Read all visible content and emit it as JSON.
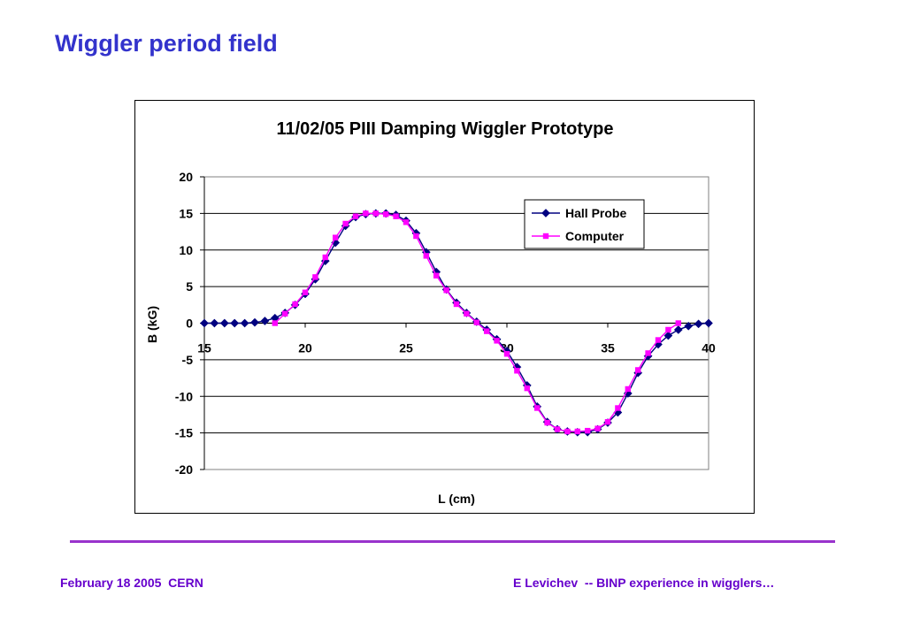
{
  "slide": {
    "title": "Wiggler period field",
    "footer_left": "February 18 2005  CERN",
    "footer_right": "E Levichev  -- BINP experience in wigglers…"
  },
  "colors": {
    "title": "#3333cc",
    "footer": "#6600cc",
    "divider": "#9933cc",
    "hall_probe": "#000080",
    "computer": "#ff00ff"
  },
  "chart_data": {
    "type": "line",
    "title": "11/02/05 PIII Damping Wiggler Prototype",
    "xlabel": "L (cm)",
    "ylabel": "B (kG)",
    "xlim": [
      15,
      40
    ],
    "ylim": [
      -20,
      20
    ],
    "x_ticks": [
      "15",
      "20",
      "25",
      "30",
      "35",
      "40"
    ],
    "y_ticks": [
      "20",
      "15",
      "10",
      "5",
      "0",
      "-5",
      "-10",
      "-15",
      "-20"
    ],
    "grid": "horizontal",
    "legend_position": "top-right",
    "series": [
      {
        "name": "Hall Probe",
        "marker": "diamond",
        "color": "#000080",
        "x": [
          15,
          15.5,
          16,
          16.5,
          17,
          17.5,
          18,
          18.5,
          19,
          19.5,
          20,
          20.5,
          21,
          21.5,
          22,
          22.5,
          23,
          23.5,
          24,
          24.5,
          25,
          25.5,
          26,
          26.5,
          27,
          27.5,
          28,
          28.5,
          29,
          29.5,
          30,
          30.5,
          31,
          31.5,
          32,
          32.5,
          33,
          33.5,
          34,
          34.5,
          35,
          35.5,
          36,
          36.5,
          37,
          37.5,
          38,
          38.5,
          39,
          39.5,
          40
        ],
        "values": [
          0,
          0,
          0,
          0,
          0,
          0.1,
          0.3,
          0.7,
          1.4,
          2.5,
          4.0,
          6.0,
          8.5,
          11.0,
          13.3,
          14.5,
          14.9,
          15.0,
          15.0,
          14.8,
          14.0,
          12.3,
          9.7,
          7.0,
          4.6,
          2.8,
          1.4,
          0.2,
          -0.9,
          -2.2,
          -3.8,
          -6.0,
          -8.5,
          -11.4,
          -13.5,
          -14.5,
          -14.8,
          -14.9,
          -14.9,
          -14.5,
          -13.6,
          -12.2,
          -9.6,
          -6.8,
          -4.5,
          -2.9,
          -1.7,
          -0.9,
          -0.4,
          -0.1,
          0
        ]
      },
      {
        "name": "Computer",
        "marker": "square",
        "color": "#ff00ff",
        "x": [
          18.5,
          19,
          19.5,
          20,
          20.5,
          21,
          21.5,
          22,
          22.5,
          23,
          23.5,
          24,
          24.5,
          25,
          25.5,
          26,
          26.5,
          27,
          27.5,
          28,
          28.5,
          29,
          29.5,
          30,
          30.5,
          31,
          31.5,
          32,
          32.5,
          33,
          33.5,
          34,
          34.5,
          35,
          35.5,
          36,
          36.5,
          37,
          37.5,
          38,
          38.5
        ],
        "values": [
          0.0,
          1.3,
          2.6,
          4.2,
          6.3,
          9.0,
          11.7,
          13.6,
          14.6,
          15.0,
          15.0,
          14.9,
          14.6,
          13.8,
          11.9,
          9.2,
          6.5,
          4.5,
          2.6,
          1.3,
          0.1,
          -1.1,
          -2.4,
          -4.2,
          -6.5,
          -8.9,
          -11.6,
          -13.6,
          -14.5,
          -14.8,
          -14.8,
          -14.7,
          -14.4,
          -13.5,
          -11.6,
          -9.0,
          -6.4,
          -4.1,
          -2.3,
          -0.9,
          0.0
        ]
      }
    ]
  }
}
